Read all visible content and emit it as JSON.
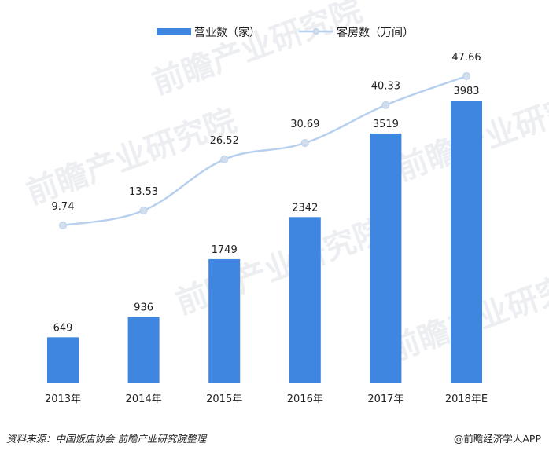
{
  "legend": {
    "bar_label": "营业数（家）",
    "line_label": "客房数（万间）"
  },
  "colors": {
    "bar": "#3f86e0",
    "line": "#b7d0ee",
    "marker": "#d2deec"
  },
  "chart_data": {
    "type": "bar",
    "categories": [
      "2013年",
      "2014年",
      "2015年",
      "2016年",
      "2017年",
      "2018年E"
    ],
    "series": [
      {
        "name": "营业数（家）",
        "type": "bar",
        "values": [
          649,
          936,
          1749,
          2342,
          3519,
          3983
        ]
      },
      {
        "name": "客房数（万间）",
        "type": "line",
        "values": [
          9.74,
          13.53,
          26.52,
          30.69,
          40.33,
          47.66
        ]
      }
    ],
    "title": "",
    "xlabel": "",
    "ylabel": "",
    "ylim_bar": [
      0,
      4500
    ],
    "ylim_line": [
      0,
      55
    ],
    "grid": false,
    "legend_position": "top-center"
  },
  "watermark_text": "前瞻产业研究院",
  "footer": {
    "source": "资料来源：中国饭店协会 前瞻产业研究院整理",
    "credit": "@前瞻经济学人APP"
  }
}
